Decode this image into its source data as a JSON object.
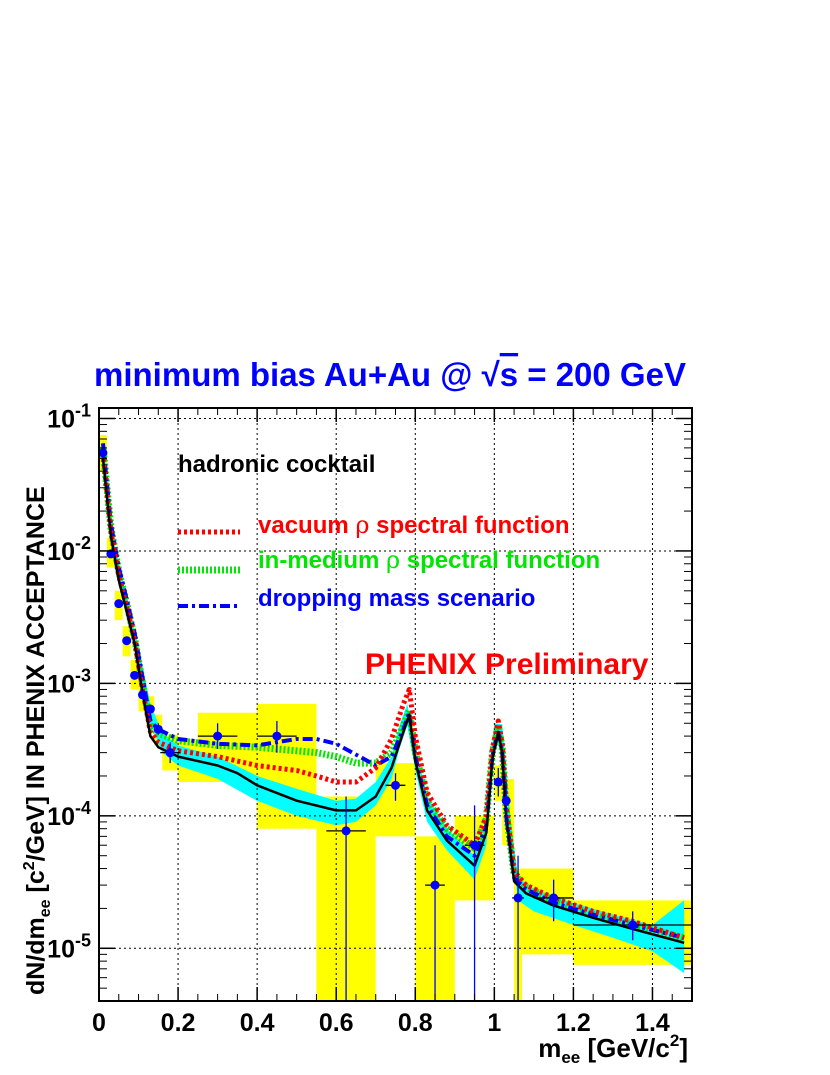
{
  "chart_data": {
    "type": "line",
    "title_parts": {
      "pre": "minimum bias Au+Au @ ",
      "sqrt": "√",
      "s": "s",
      "post": " = 200 GeV"
    },
    "xlabel": {
      "main": "m",
      "sub": "ee",
      "unit": " [GeV/c",
      "sup": "2",
      "close": "]"
    },
    "ylabel": {
      "a": "dN/dm",
      "sub": "ee",
      "b": " [c",
      "sup": "2",
      "c": "/GeV] IN PHENIX ACCEPTANCE"
    },
    "xlim": [
      0,
      1.5
    ],
    "ylim": [
      4e-06,
      0.12
    ],
    "yscale": "log",
    "grid": true,
    "x_ticks": [
      {
        "v": 0,
        "label": "0"
      },
      {
        "v": 0.2,
        "label": "0.2"
      },
      {
        "v": 0.4,
        "label": "0.4"
      },
      {
        "v": 0.6,
        "label": "0.6"
      },
      {
        "v": 0.8,
        "label": "0.8"
      },
      {
        "v": 1.0,
        "label": "1"
      },
      {
        "v": 1.2,
        "label": "1.2"
      },
      {
        "v": 1.4,
        "label": "1.4"
      }
    ],
    "y_ticks": [
      {
        "v": 0.1,
        "base": "10",
        "exp": "-1"
      },
      {
        "v": 0.01,
        "base": "10",
        "exp": "-2"
      },
      {
        "v": 0.001,
        "base": "10",
        "exp": "-3"
      },
      {
        "v": 0.0001,
        "base": "10",
        "exp": "-4"
      },
      {
        "v": 1e-05,
        "base": "10",
        "exp": "-5"
      }
    ],
    "legend": {
      "placement": "top",
      "cocktail": "hadronic cocktail",
      "entries": [
        {
          "name_a": "vacuum ",
          "rho": "ρ",
          "name_b": " spectral function",
          "color": "#ff0000",
          "style": "dotted"
        },
        {
          "name_a": "in-medium ",
          "rho": "ρ",
          "name_b": " spectral function",
          "color": "#00e600",
          "style": "hatched"
        },
        {
          "name_a": "dropping mass scenario",
          "rho": "",
          "name_b": "",
          "color": "#0000ff",
          "style": "dashdot"
        }
      ]
    },
    "annotation": "PHENIX Preliminary",
    "colors": {
      "title": "#0000ff",
      "data": "#0000ff",
      "syst": "#ffff00",
      "cocktail_band": "#00ffff",
      "annotation": "#ff0000"
    },
    "cocktail_band": {
      "x": [
        0.01,
        0.04,
        0.07,
        0.1,
        0.13,
        0.16,
        0.2,
        0.3,
        0.4,
        0.5,
        0.6,
        0.65,
        0.7,
        0.74,
        0.76,
        0.78,
        0.8,
        0.83,
        0.88,
        0.95,
        0.98,
        1.0,
        1.02,
        1.04,
        1.06,
        1.1,
        1.2,
        1.3,
        1.4,
        1.48
      ],
      "lo": [
        0.04,
        0.0075,
        0.0031,
        0.0014,
        0.0005,
        0.0003,
        0.00024,
        0.00019,
        0.00013,
        0.0001,
        8.5e-05,
        9e-05,
        0.00012,
        0.00019,
        0.00032,
        0.00048,
        0.00022,
        9e-05,
        5.5e-05,
        3.3e-05,
        6e-05,
        0.00035,
        0.00034,
        7e-05,
        2.3e-05,
        1.9e-05,
        1.5e-05,
        1.2e-05,
        9.5e-06,
        6.5e-06
      ],
      "hi": [
        0.07,
        0.011,
        0.0045,
        0.0019,
        0.0007,
        0.00042,
        0.00034,
        0.00028,
        0.0002,
        0.00016,
        0.00013,
        0.000135,
        0.00018,
        0.00028,
        0.00048,
        0.0007,
        0.00033,
        0.00014,
        8e-05,
        5e-05,
        9e-05,
        0.0005,
        0.00049,
        0.0001,
        3.4e-05,
        2.8e-05,
        2.2e-05,
        1.8e-05,
        1.5e-05,
        2.3e-05
      ]
    },
    "series": [
      {
        "key": "cocktail",
        "color": "#000000",
        "style": "solid",
        "x": [
          0.01,
          0.03,
          0.05,
          0.07,
          0.09,
          0.11,
          0.13,
          0.15,
          0.2,
          0.3,
          0.35,
          0.4,
          0.5,
          0.6,
          0.65,
          0.7,
          0.74,
          0.77,
          0.785,
          0.8,
          0.83,
          0.88,
          0.95,
          0.98,
          0.995,
          1.01,
          1.02,
          1.03,
          1.05,
          1.08,
          1.15,
          1.25,
          1.35,
          1.48
        ],
        "y": [
          0.05,
          0.013,
          0.006,
          0.0035,
          0.002,
          0.00085,
          0.0004,
          0.00033,
          0.00028,
          0.00024,
          0.00021,
          0.00017,
          0.00013,
          0.00011,
          0.00011,
          0.00014,
          0.00023,
          0.00043,
          0.00058,
          0.00026,
          0.00011,
          6.5e-05,
          4.2e-05,
          7.5e-05,
          0.00027,
          0.00043,
          0.0003,
          0.0001,
          3.2e-05,
          2.6e-05,
          2.1e-05,
          1.7e-05,
          1.4e-05,
          1.1e-05
        ]
      },
      {
        "key": "vacuum",
        "color": "#ff0000",
        "style": "dotted",
        "x": [
          0.01,
          0.03,
          0.05,
          0.07,
          0.09,
          0.11,
          0.13,
          0.15,
          0.2,
          0.3,
          0.4,
          0.5,
          0.55,
          0.6,
          0.65,
          0.7,
          0.74,
          0.77,
          0.785,
          0.8,
          0.83,
          0.88,
          0.95,
          0.98,
          0.995,
          1.01,
          1.02,
          1.03,
          1.05,
          1.08,
          1.15,
          1.25,
          1.35,
          1.48
        ],
        "y": [
          0.055,
          0.014,
          0.0065,
          0.0038,
          0.0021,
          0.0009,
          0.00043,
          0.00036,
          0.00031,
          0.00028,
          0.00024,
          0.00022,
          0.0002,
          0.00018,
          0.00018,
          0.00023,
          0.00038,
          0.0007,
          0.0009,
          0.0004,
          0.00015,
          8.5e-05,
          6e-05,
          0.0001,
          0.00032,
          0.00052,
          0.00035,
          0.00012,
          3.8e-05,
          3e-05,
          2.4e-05,
          1.9e-05,
          1.6e-05,
          1.2e-05
        ]
      },
      {
        "key": "in-medium",
        "color": "#00e600",
        "style": "hatched",
        "x": [
          0.01,
          0.03,
          0.05,
          0.07,
          0.09,
          0.11,
          0.13,
          0.15,
          0.2,
          0.3,
          0.4,
          0.5,
          0.55,
          0.6,
          0.65,
          0.7,
          0.74,
          0.77,
          0.785,
          0.8,
          0.83,
          0.88,
          0.95,
          0.98,
          0.995,
          1.01,
          1.02,
          1.03,
          1.05,
          1.08,
          1.15,
          1.25,
          1.35,
          1.48
        ],
        "y": [
          0.06,
          0.015,
          0.007,
          0.004,
          0.0022,
          0.001,
          0.00048,
          0.00042,
          0.00037,
          0.00034,
          0.00033,
          0.00031,
          0.0003,
          0.00028,
          0.00025,
          0.00025,
          0.0003,
          0.00048,
          0.00062,
          0.0003,
          0.00013,
          8e-05,
          5.7e-05,
          9.5e-05,
          0.0003,
          0.00047,
          0.00033,
          0.00011,
          3.6e-05,
          2.9e-05,
          2.3e-05,
          1.8e-05,
          1.5e-05,
          1.2e-05
        ]
      },
      {
        "key": "dropping",
        "color": "#0000ff",
        "style": "dashdot",
        "x": [
          0.01,
          0.03,
          0.05,
          0.07,
          0.09,
          0.11,
          0.13,
          0.15,
          0.2,
          0.3,
          0.4,
          0.45,
          0.5,
          0.55,
          0.6,
          0.65,
          0.7,
          0.74,
          0.77,
          0.785,
          0.8,
          0.83,
          0.88,
          0.95,
          0.98,
          0.995,
          1.01,
          1.02,
          1.03,
          1.05,
          1.08,
          1.15,
          1.25,
          1.35,
          1.48
        ],
        "y": [
          0.065,
          0.016,
          0.0075,
          0.0043,
          0.0024,
          0.0011,
          0.00052,
          0.00045,
          0.00038,
          0.00035,
          0.00034,
          0.00036,
          0.00038,
          0.00038,
          0.00035,
          0.00029,
          0.00024,
          0.00028,
          0.00045,
          0.0006,
          0.00028,
          0.00012,
          7e-05,
          5e-05,
          8.5e-05,
          0.00028,
          0.00045,
          0.0003,
          0.0001,
          3.4e-05,
          2.8e-05,
          2.2e-05,
          1.8e-05,
          1.5e-05,
          1.2e-05
        ]
      }
    ],
    "data_points": [
      {
        "x": 0.01,
        "y": 0.055,
        "ylo": 0.05,
        "yhi": 0.06,
        "xerr": 0.01
      },
      {
        "x": 0.03,
        "y": 0.0095,
        "ylo": 0.009,
        "yhi": 0.01,
        "xerr": 0.01
      },
      {
        "x": 0.05,
        "y": 0.004,
        "ylo": 0.0038,
        "yhi": 0.0042,
        "xerr": 0.01
      },
      {
        "x": 0.07,
        "y": 0.0021,
        "ylo": 0.002,
        "yhi": 0.0022,
        "xerr": 0.01
      },
      {
        "x": 0.09,
        "y": 0.00115,
        "ylo": 0.0011,
        "yhi": 0.0012,
        "xerr": 0.01
      },
      {
        "x": 0.11,
        "y": 0.00082,
        "ylo": 0.00078,
        "yhi": 0.00087,
        "xerr": 0.01
      },
      {
        "x": 0.13,
        "y": 0.00064,
        "ylo": 0.0006,
        "yhi": 0.00068,
        "xerr": 0.01
      },
      {
        "x": 0.15,
        "y": 0.00045,
        "ylo": 0.00041,
        "yhi": 0.0005,
        "xerr": 0.01
      },
      {
        "x": 0.18,
        "y": 0.0003,
        "ylo": 0.00025,
        "yhi": 0.00036,
        "xerr": 0.025
      },
      {
        "x": 0.3,
        "y": 0.0004,
        "ylo": 0.00032,
        "yhi": 0.0005,
        "xerr": 0.05
      },
      {
        "x": 0.45,
        "y": 0.0004,
        "ylo": 0.0003,
        "yhi": 0.00052,
        "xerr": 0.05
      },
      {
        "x": 0.625,
        "y": 7.7e-05,
        "ylo": 4e-06,
        "yhi": 0.00014,
        "xerr": 0.05
      },
      {
        "x": 0.75,
        "y": 0.00017,
        "ylo": 0.00013,
        "yhi": 0.00021,
        "xerr": 0.025
      },
      {
        "x": 0.85,
        "y": 3e-05,
        "ylo": 4e-06,
        "yhi": 6e-05,
        "xerr": 0.025
      },
      {
        "x": 0.95,
        "y": 6e-05,
        "ylo": 4e-06,
        "yhi": 0.00012,
        "xerr": 0.025
      },
      {
        "x": 1.01,
        "y": 0.00018,
        "ylo": 0.00014,
        "yhi": 0.00023,
        "xerr": 0.01
      },
      {
        "x": 1.03,
        "y": 0.00013,
        "ylo": 8e-05,
        "yhi": 0.00018,
        "xerr": 0.01
      },
      {
        "x": 1.06,
        "y": 2.4e-05,
        "ylo": 4e-06,
        "yhi": 5e-05,
        "xerr": 0.015
      },
      {
        "x": 1.15,
        "y": 2.4e-05,
        "ylo": 1.6e-05,
        "yhi": 3.3e-05,
        "xerr": 0.05
      },
      {
        "x": 1.35,
        "y": 1.5e-05,
        "ylo": 1.15e-05,
        "yhi": 1.9e-05,
        "xerr": 0.15
      }
    ],
    "syst_boxes": [
      {
        "x0": 0.0,
        "x1": 0.02,
        "ylo": 0.04,
        "yhi": 0.075
      },
      {
        "x0": 0.02,
        "x1": 0.04,
        "ylo": 0.0075,
        "yhi": 0.0125
      },
      {
        "x0": 0.04,
        "x1": 0.06,
        "ylo": 0.003,
        "yhi": 0.005
      },
      {
        "x0": 0.06,
        "x1": 0.08,
        "ylo": 0.0016,
        "yhi": 0.0027
      },
      {
        "x0": 0.08,
        "x1": 0.1,
        "ylo": 0.0009,
        "yhi": 0.0015
      },
      {
        "x0": 0.1,
        "x1": 0.12,
        "ylo": 0.00062,
        "yhi": 0.00105
      },
      {
        "x0": 0.12,
        "x1": 0.14,
        "ylo": 0.00047,
        "yhi": 0.0008
      },
      {
        "x0": 0.14,
        "x1": 0.16,
        "ylo": 0.00034,
        "yhi": 0.00058
      },
      {
        "x0": 0.16,
        "x1": 0.2,
        "ylo": 0.00022,
        "yhi": 0.00041
      },
      {
        "x0": 0.2,
        "x1": 0.25,
        "ylo": 0.00018,
        "yhi": 0.00038
      },
      {
        "x0": 0.25,
        "x1": 0.4,
        "ylo": 0.00018,
        "yhi": 0.0006
      },
      {
        "x0": 0.4,
        "x1": 0.55,
        "ylo": 8e-05,
        "yhi": 0.0007
      },
      {
        "x0": 0.55,
        "x1": 0.7,
        "ylo": 4e-06,
        "yhi": 0.00014
      },
      {
        "x0": 0.7,
        "x1": 0.8,
        "ylo": 7e-05,
        "yhi": 0.00025
      },
      {
        "x0": 0.8,
        "x1": 0.9,
        "ylo": 4e-06,
        "yhi": 7e-05
      },
      {
        "x0": 0.9,
        "x1": 1.0,
        "ylo": 2.3e-05,
        "yhi": 0.0001
      },
      {
        "x0": 1.0,
        "x1": 1.02,
        "ylo": 0.00013,
        "yhi": 0.00024
      },
      {
        "x0": 1.02,
        "x1": 1.05,
        "ylo": 6e-05,
        "yhi": 0.00019
      },
      {
        "x0": 1.05,
        "x1": 1.07,
        "ylo": 4e-06,
        "yhi": 4e-05
      },
      {
        "x0": 1.07,
        "x1": 1.2,
        "ylo": 9e-06,
        "yhi": 4e-05
      },
      {
        "x0": 1.2,
        "x1": 1.5,
        "ylo": 7.5e-06,
        "yhi": 2.3e-05
      }
    ]
  }
}
